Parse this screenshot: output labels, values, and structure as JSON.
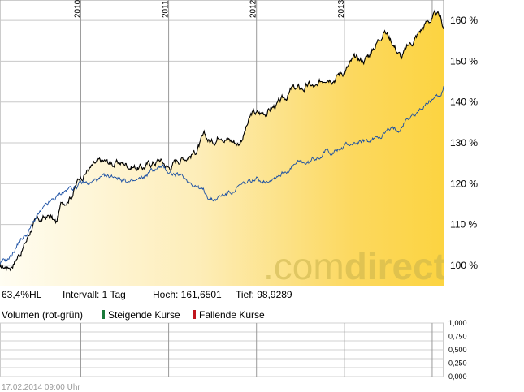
{
  "chart_data": {
    "type": "line",
    "ylim": [
      95,
      165
    ],
    "yticks": [
      100,
      110,
      120,
      130,
      140,
      150,
      160
    ],
    "ytick_labels": [
      "100 %",
      "110 %",
      "120 %",
      "130 %",
      "140 %",
      "150 %",
      "160 %"
    ],
    "x_year_labels": [
      "2010",
      "2011",
      "2012",
      "2013"
    ],
    "xlim": [
      2009.08,
      2014.13
    ],
    "x_year_positions": [
      2010,
      2011,
      2012,
      2013
    ],
    "grid": true,
    "series": [
      {
        "color": "#000000",
        "fill": "gradient-gold",
        "x": [
          2009.08,
          2009.2,
          2009.3,
          2009.38,
          2009.45,
          2009.55,
          2009.65,
          2009.72,
          2009.78,
          2009.9,
          2010.0,
          2010.1,
          2010.25,
          2010.35,
          2010.5,
          2010.7,
          2010.9,
          2011.0,
          2011.1,
          2011.2,
          2011.3,
          2011.4,
          2011.5,
          2011.6,
          2011.7,
          2011.8,
          2011.95,
          2012.05,
          2012.2,
          2012.3,
          2012.4,
          2012.5,
          2012.6,
          2012.7,
          2012.8,
          2012.9,
          2013.0,
          2013.1,
          2013.2,
          2013.3,
          2013.35,
          2013.45,
          2013.55,
          2013.65,
          2013.75,
          2013.85,
          2013.95,
          2014.05,
          2014.1,
          2014.13
        ],
        "y": [
          99,
          100,
          103,
          106,
          110,
          111,
          112,
          110,
          115,
          118,
          122,
          124,
          125,
          125,
          125,
          124,
          126,
          124,
          126,
          127,
          128,
          131,
          130,
          133,
          131,
          130,
          137,
          137,
          139,
          140,
          143,
          143,
          144,
          143,
          147,
          147,
          148,
          150,
          150,
          152,
          154,
          158,
          155,
          151,
          154,
          157,
          160,
          161,
          160,
          158
        ]
      },
      {
        "color": "#1a4fa3",
        "fill": "none",
        "x": [
          2009.08,
          2009.2,
          2009.3,
          2009.4,
          2009.5,
          2009.6,
          2009.7,
          2009.8,
          2009.9,
          2010.0,
          2010.1,
          2010.2,
          2010.3,
          2010.4,
          2010.5,
          2010.6,
          2010.7,
          2010.8,
          2010.9,
          2011.0,
          2011.1,
          2011.2,
          2011.3,
          2011.4,
          2011.5,
          2011.6,
          2011.7,
          2011.8,
          2011.9,
          2012.0,
          2012.1,
          2012.2,
          2012.3,
          2012.4,
          2012.5,
          2012.6,
          2012.7,
          2012.8,
          2012.9,
          2013.0,
          2013.1,
          2013.2,
          2013.3,
          2013.4,
          2013.5,
          2013.6,
          2013.7,
          2013.8,
          2013.9,
          2014.0,
          2014.1,
          2014.13
        ],
        "y": [
          100,
          102,
          106,
          108,
          112,
          114,
          116,
          118,
          119,
          120,
          120,
          121,
          121,
          122,
          121,
          120,
          121,
          123,
          124,
          123,
          122,
          121,
          120,
          118,
          116,
          117,
          118,
          119,
          120,
          121,
          121,
          122,
          123,
          124,
          125,
          125,
          127,
          128,
          128,
          129,
          130,
          130,
          130,
          132,
          133,
          133,
          136,
          137,
          139,
          141,
          142,
          144
        ]
      }
    ]
  },
  "info_row": {
    "perf": "63,4%HL",
    "interval": "Intervall: 1 Tag",
    "high": "Hoch: 161,6501",
    "low": "Tief: 98,9289"
  },
  "volume_legend": {
    "title": "Volumen (rot-grün)",
    "rising": "Steigende Kurse",
    "falling": "Fallende Kurse",
    "rising_color": "#1a7a3a",
    "falling_color": "#c0141c"
  },
  "volume_axis": [
    "1,000",
    "0,750",
    "0,500",
    "0,250",
    "0,000"
  ],
  "timestamp": "17.02.2014 09:00 Uhr",
  "watermark": {
    "dot": ".",
    "a": "com",
    "b": "direct"
  }
}
